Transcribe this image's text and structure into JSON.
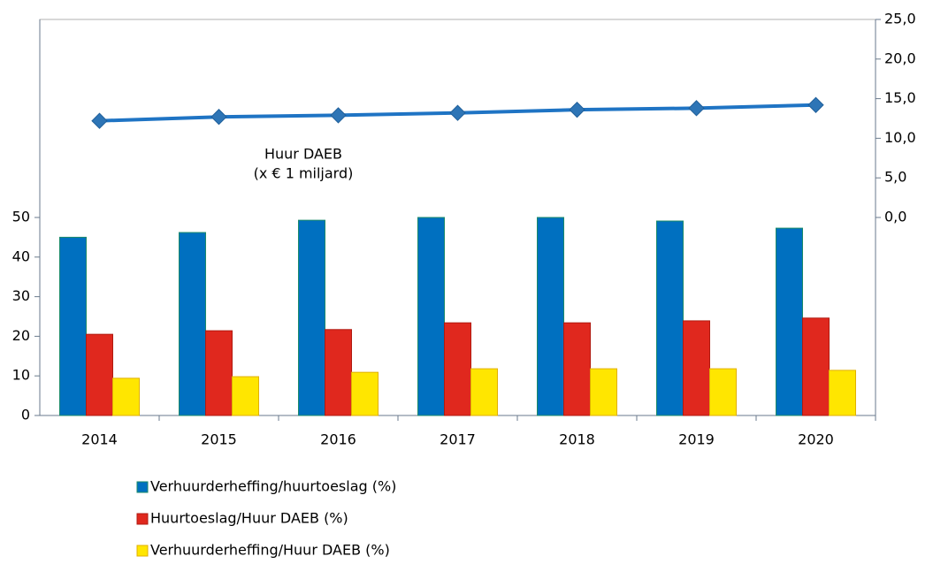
{
  "chart_data": {
    "type": "bar",
    "categories": [
      "2014",
      "2015",
      "2016",
      "2017",
      "2018",
      "2019",
      "2020"
    ],
    "series": [
      {
        "name": "Verhuurderheffing/huurtoeslag (%)",
        "color": "#0070c0",
        "values": [
          45,
          46.2,
          49.3,
          50,
          50,
          49.1,
          47.3
        ]
      },
      {
        "name": "Huurtoeslag/Huur DAEB (%)",
        "color": "#e0281e",
        "values": [
          20.5,
          21.4,
          21.7,
          23.4,
          23.4,
          23.9,
          24.6
        ]
      },
      {
        "name": "Verhuurderheffing/Huur DAEB (%)",
        "color": "#ffe600",
        "values": [
          9.4,
          9.8,
          10.9,
          11.8,
          11.8,
          11.8,
          11.4
        ]
      },
      {
        "type": "line",
        "axis": "y2",
        "color": "#1f74c4",
        "values": [
          12.2,
          12.7,
          12.9,
          13.2,
          13.6,
          13.8,
          14.2
        ]
      }
    ],
    "annotation": [
      "Huur DAEB",
      "(x € 1 miljard)"
    ],
    "ylim": [
      0,
      100
    ],
    "yticks": [
      0,
      10,
      20,
      30,
      40,
      50
    ],
    "y2lim": [
      -25,
      25
    ],
    "y2ticks": [
      {
        "value": 0,
        "label": "0,0"
      },
      {
        "value": 5,
        "label": "5,0"
      },
      {
        "value": 10,
        "label": "10,0"
      },
      {
        "value": 15,
        "label": "15,0"
      },
      {
        "value": 20,
        "label": "20,0"
      },
      {
        "value": 25,
        "label": "25,0"
      }
    ],
    "legend": "bottom"
  }
}
